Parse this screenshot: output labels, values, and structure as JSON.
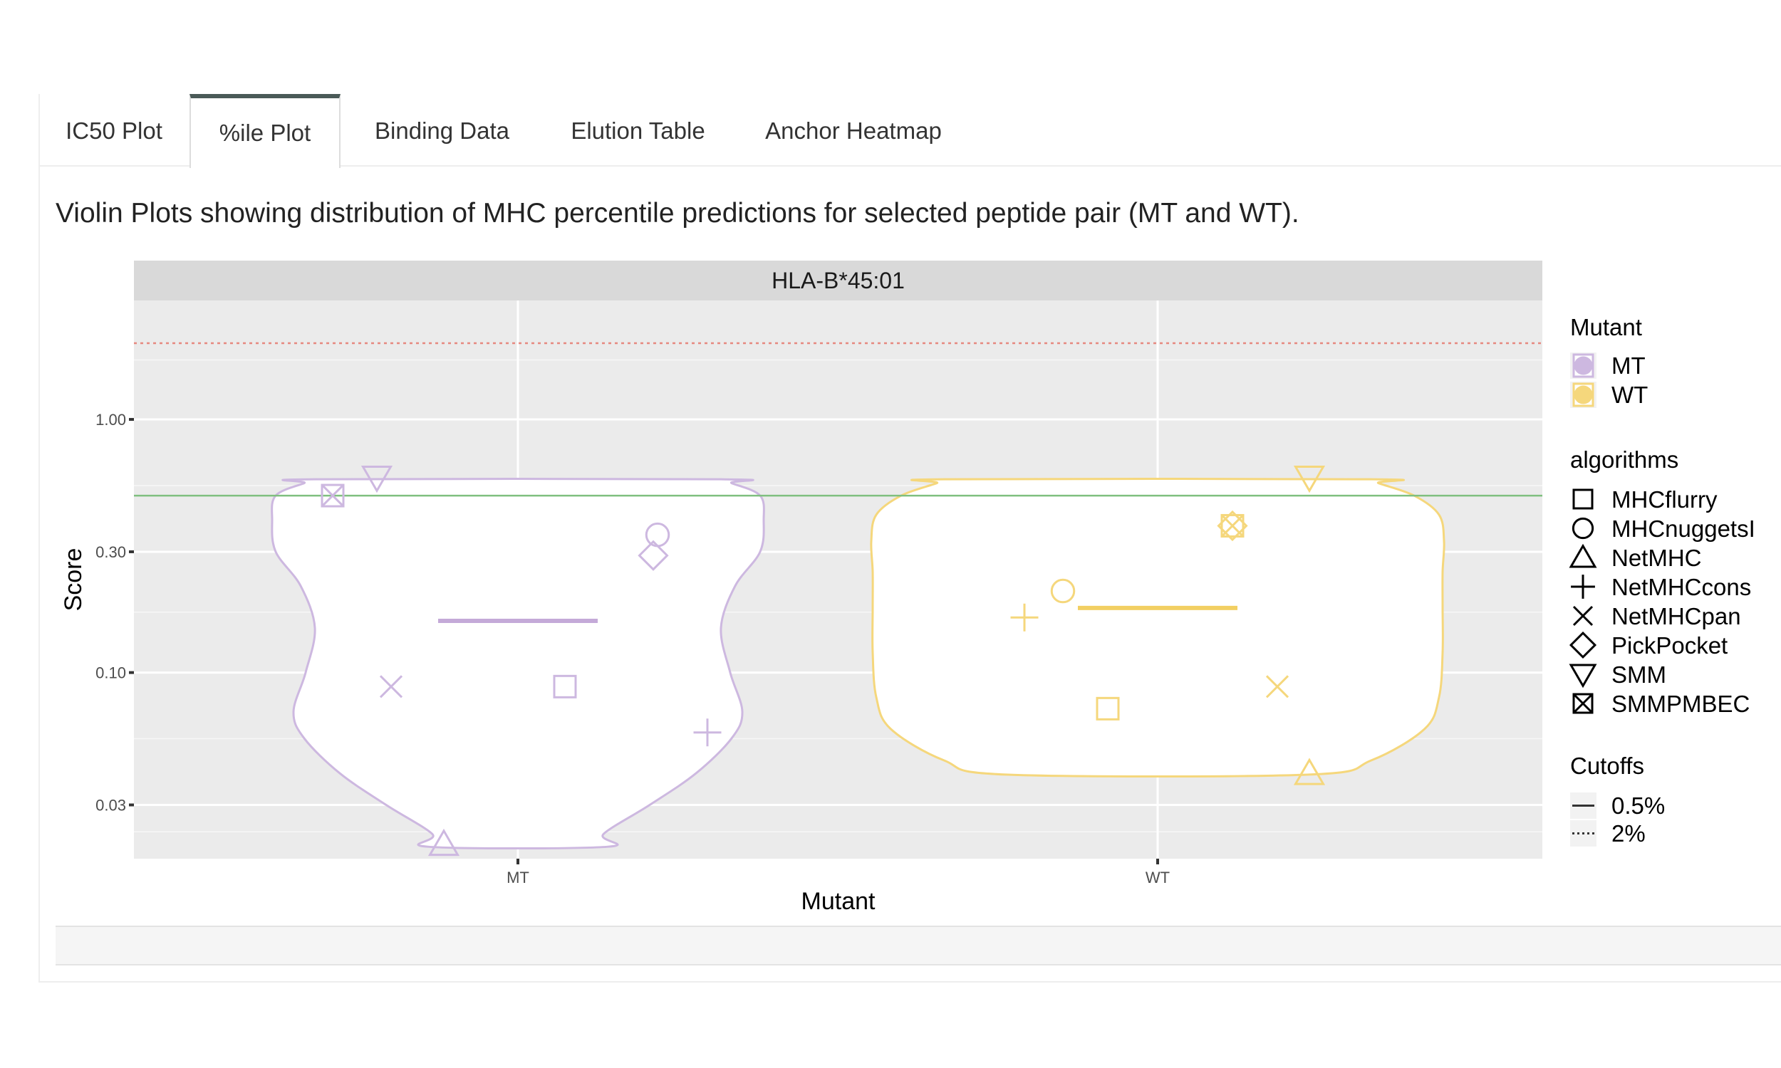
{
  "tabs": [
    {
      "label": "IC50 Plot",
      "active": false
    },
    {
      "label": "%ile Plot",
      "active": true
    },
    {
      "label": "Binding Data",
      "active": false
    },
    {
      "label": "Elution Table",
      "active": false
    },
    {
      "label": "Anchor Heatmap",
      "active": false
    }
  ],
  "description": "Violin Plots showing distribution of MHC percentile predictions for selected peptide pair (MT and WT).",
  "chart_data": {
    "type": "violin",
    "facet_label": "HLA-B*45:01",
    "xlabel": "Mutant",
    "ylabel": "Score",
    "y_scale": "log10",
    "ylim": [
      0.0184,
      2.95
    ],
    "y_ticks": [
      {
        "value": 0.03,
        "label": "0.03"
      },
      {
        "value": 0.1,
        "label": "0.10"
      },
      {
        "value": 0.3,
        "label": "0.30"
      },
      {
        "value": 1.0,
        "label": "1.00"
      }
    ],
    "categories": [
      "MT",
      "WT"
    ],
    "cutoffs": [
      {
        "label": "0.5%",
        "value": 0.5,
        "linetype": "solid",
        "color": "#7fbf7f"
      },
      {
        "label": "2%",
        "value": 2,
        "linetype": "dotted",
        "color": "#e6897f"
      }
    ],
    "colors": {
      "MT": "#cdb8e0",
      "WT": "#f5d77c",
      "MT_median": "#c4aad8",
      "WT_median": "#f2cf62"
    },
    "series": [
      {
        "name": "MT",
        "median": 0.16,
        "points": [
          {
            "algorithm": "MHCflurry",
            "y": 0.088
          },
          {
            "algorithm": "MHCnuggetsI",
            "y": 0.35
          },
          {
            "algorithm": "NetMHC",
            "y": 0.021
          },
          {
            "algorithm": "NetMHCcons",
            "y": 0.058
          },
          {
            "algorithm": "NetMHCpan",
            "y": 0.088
          },
          {
            "algorithm": "PickPocket",
            "y": 0.29
          },
          {
            "algorithm": "SMM",
            "y": 0.59
          },
          {
            "algorithm": "SMMPMBEC",
            "y": 0.5
          }
        ]
      },
      {
        "name": "WT",
        "median": 0.18,
        "points": [
          {
            "algorithm": "MHCflurry",
            "y": 0.072
          },
          {
            "algorithm": "MHCnuggetsI",
            "y": 0.21
          },
          {
            "algorithm": "NetMHC",
            "y": 0.04
          },
          {
            "algorithm": "NetMHCcons",
            "y": 0.165
          },
          {
            "algorithm": "NetMHCpan",
            "y": 0.088
          },
          {
            "algorithm": "PickPocket",
            "y": 0.38
          },
          {
            "algorithm": "SMM",
            "y": 0.59
          },
          {
            "algorithm": "SMMPMBEC",
            "y": 0.38
          }
        ]
      }
    ],
    "legend": {
      "position": "right",
      "mutant_title": "Mutant",
      "mutant_items": [
        "MT",
        "WT"
      ],
      "algorithms_title": "algorithms",
      "algorithms": [
        "MHCflurry",
        "MHCnuggetsI",
        "NetMHC",
        "NetMHCcons",
        "NetMHCpan",
        "PickPocket",
        "SMM",
        "SMMPMBEC"
      ],
      "algorithm_shapes": [
        "square",
        "circle",
        "triangle",
        "plus",
        "cross",
        "diamond",
        "triangle-down",
        "square-cross"
      ],
      "cutoffs_title": "Cutoffs",
      "cutoff_items": [
        "0.5%",
        "2%"
      ]
    },
    "grid": true,
    "panel_background": "#ebebeb",
    "strip_background": "#d9d9d9"
  }
}
